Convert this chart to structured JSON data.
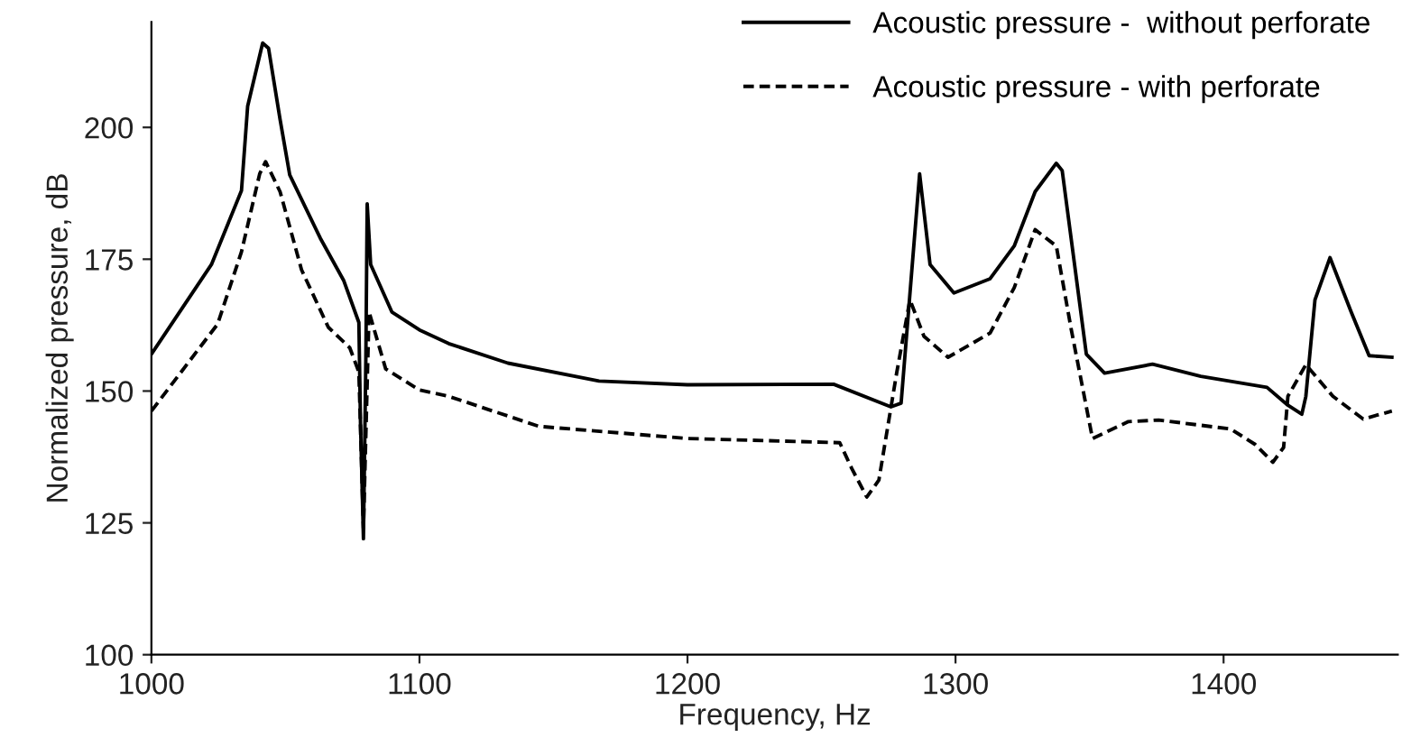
{
  "chart_data": {
    "type": "line",
    "xlabel": "Frequency, Hz",
    "ylabel": "Normalized pressure, dB",
    "xlim": [
      1000,
      1465
    ],
    "ylim": [
      100,
      220
    ],
    "xticks": [
      1000,
      1100,
      1200,
      1300,
      1400
    ],
    "yticks": [
      100,
      125,
      150,
      175,
      200
    ],
    "grid": false,
    "legend": "top right",
    "marker": "none",
    "series": [
      {
        "name": "Acoustic pressure -  without perforate",
        "color": "#000000",
        "line_style": "solid",
        "x": [
          1000,
          1022.4,
          1033.6,
          1035.9,
          1041.5,
          1043.7,
          1048,
          1051.6,
          1063,
          1071.7,
          1077.4,
          1078,
          1079.1,
          1080,
          1080.5,
          1081.8,
          1089.7,
          1100,
          1110.9,
          1133,
          1167,
          1200,
          1254.5,
          1275.9,
          1279.7,
          1286.6,
          1290.5,
          1299.4,
          1312.9,
          1321.9,
          1329.7,
          1337.6,
          1339.8,
          1348.8,
          1355.6,
          1373.5,
          1391.5,
          1416.2,
          1424,
          1429.2,
          1430.7,
          1434.1,
          1439.7,
          1447.6,
          1454.3,
          1462.8
        ],
        "values": [
          157,
          174,
          188,
          204,
          216,
          215,
          201.5,
          191,
          179,
          171,
          163,
          144,
          122,
          156,
          185.5,
          174,
          165,
          161.6,
          159,
          155.3,
          151.9,
          151.2,
          151.3,
          147,
          147.7,
          191.2,
          174,
          168.6,
          171.3,
          177.5,
          187.8,
          193.2,
          191.8,
          157,
          153.4,
          155.1,
          152.8,
          150.7,
          147.3,
          145.6,
          149,
          167.3,
          175.3,
          165,
          156.7,
          156.4
        ]
      },
      {
        "name": "Acoustic pressure - with perforate",
        "color": "#000000",
        "line_style": "dashed",
        "x": [
          1000,
          1024.7,
          1033.6,
          1040.4,
          1042.6,
          1048,
          1056,
          1066,
          1074,
          1077.4,
          1079.1,
          1081.2,
          1087.4,
          1100,
          1110.9,
          1144.6,
          1200,
          1256.8,
          1261.3,
          1266.9,
          1271.4,
          1278.1,
          1283,
          1288.2,
          1297.2,
          1312.9,
          1321.9,
          1329.7,
          1337.6,
          1343.2,
          1351.1,
          1364.5,
          1375.8,
          1402.7,
          1411.7,
          1418.4,
          1422.4,
          1424,
          1430.7,
          1440.8,
          1452.1,
          1462.8
        ],
        "values": [
          146.2,
          162.7,
          176.4,
          191.2,
          193.5,
          187.8,
          173,
          162.1,
          158.2,
          153.6,
          124,
          165,
          154.2,
          150.2,
          149,
          143.3,
          141,
          140.2,
          135.3,
          129.9,
          133.1,
          153.6,
          167.3,
          160.4,
          156.4,
          161,
          169.6,
          180.6,
          177.5,
          161.6,
          141,
          144.2,
          144.5,
          142.8,
          139.9,
          136.5,
          139.3,
          149,
          155,
          149,
          144.7,
          146.2
        ]
      }
    ]
  }
}
